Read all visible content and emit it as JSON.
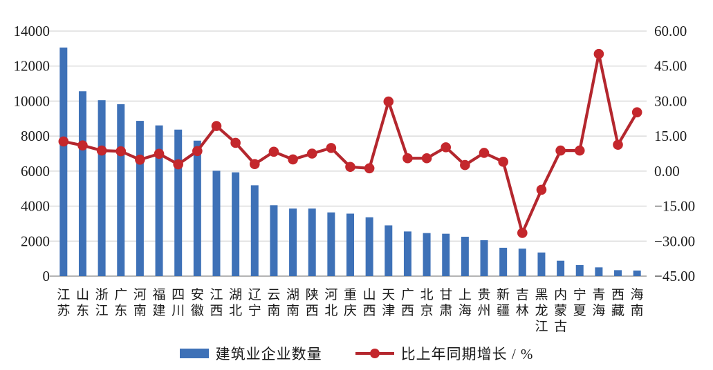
{
  "chart_data": {
    "type": "bar+line combo",
    "categories": [
      "江苏",
      "山东",
      "浙江",
      "广东",
      "河南",
      "福建",
      "四川",
      "安徽",
      "江西",
      "湖北",
      "辽宁",
      "云南",
      "湖南",
      "陕西",
      "河北",
      "重庆",
      "山西",
      "天津",
      "广西",
      "北京",
      "甘肃",
      "上海",
      "贵州",
      "新疆",
      "吉林",
      "黑龙江",
      "内蒙古",
      "宁夏",
      "青海",
      "西藏",
      "海南"
    ],
    "series": [
      {
        "name": "建筑业企业数量",
        "type": "bar",
        "axis": "left",
        "values": [
          13060,
          10560,
          10050,
          9820,
          8870,
          8610,
          8370,
          7740,
          6020,
          5930,
          5190,
          4050,
          3860,
          3860,
          3640,
          3570,
          3360,
          2900,
          2550,
          2460,
          2420,
          2250,
          2050,
          1620,
          1570,
          1350,
          880,
          630,
          500,
          340,
          320
        ]
      },
      {
        "name": "比上年同期增长 / %",
        "type": "line",
        "axis": "right",
        "values": [
          12.7,
          11.0,
          8.8,
          8.5,
          4.9,
          7.4,
          2.9,
          8.6,
          19.3,
          12.1,
          3.0,
          8.3,
          5.0,
          7.5,
          9.9,
          1.8,
          1.2,
          29.8,
          5.5,
          5.5,
          10.2,
          2.6,
          7.8,
          4.0,
          -26.5,
          -8.0,
          8.8,
          8.8,
          50.2,
          11.3,
          25.2
        ]
      }
    ],
    "left_axis": {
      "min": 0,
      "max": 14000,
      "tick_step": 2000,
      "tick_labels": [
        "0",
        "2000",
        "4000",
        "6000",
        "8000",
        "10000",
        "12000",
        "14000"
      ]
    },
    "right_axis": {
      "min": -45,
      "max": 60,
      "tick_step": 15,
      "tick_labels": [
        "−45.00",
        "−30.00",
        "−15.00",
        "0.00",
        "15.00",
        "30.00",
        "45.00",
        "60.00"
      ]
    },
    "grid": true,
    "legend_position": "bottom",
    "title": "",
    "xlabel": "",
    "ylabel": ""
  },
  "legend": {
    "bar_label": "建筑业企业数量",
    "line_label": "比上年同期增长 / %"
  },
  "colors": {
    "bar": "#3e71b7",
    "line": "#b4272e",
    "marker": "#c4272c",
    "grid": "#d6d6d6",
    "axis_line": "#9c9c9c",
    "text": "#1a1a1a",
    "background": "#ffffff"
  }
}
